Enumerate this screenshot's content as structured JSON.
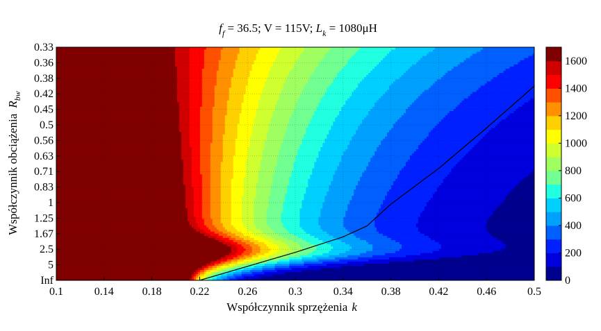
{
  "chart_data": {
    "type": "heatmap",
    "title": {
      "f_symbol": "f",
      "f_sub": "f",
      "f_rest": " = 36.5; V = 115V; ",
      "L_symbol": "L",
      "L_sub": "k",
      "L_rest": " = 1080μH"
    },
    "xlabel": {
      "text": "Współczynnik sprzężenia",
      "symbol": "k"
    },
    "ylabel": {
      "text": "Współczynnik obciążenia",
      "symbol": "R",
      "sub": "bw"
    },
    "x_ticks": [
      "0.1",
      "0.14",
      "0.18",
      "0.22",
      "0.26",
      "0.3",
      "0.34",
      "0.38",
      "0.42",
      "0.46",
      "0.5"
    ],
    "x_range": [
      0.1,
      0.5
    ],
    "y_ticks": [
      "0.33",
      "0.36",
      "0.38",
      "0.42",
      "0.45",
      "0.5",
      "0.56",
      "0.63",
      "0.71",
      "0.83",
      "1",
      "1.25",
      "1.67",
      "2.5",
      "5",
      "Inf"
    ],
    "colorbar": {
      "ticks": [
        "0",
        "200",
        "400",
        "600",
        "800",
        "1000",
        "1200",
        "1400",
        "1600"
      ],
      "range": [
        0,
        1700
      ]
    },
    "levels": [
      {
        "min": 0,
        "max": 100,
        "color": "#00008f"
      },
      {
        "min": 100,
        "max": 200,
        "color": "#0000df"
      },
      {
        "min": 200,
        "max": 300,
        "color": "#0020ff"
      },
      {
        "min": 300,
        "max": 400,
        "color": "#0060ff"
      },
      {
        "min": 400,
        "max": 500,
        "color": "#00a0ff"
      },
      {
        "min": 500,
        "max": 600,
        "color": "#00d0ff"
      },
      {
        "min": 600,
        "max": 700,
        "color": "#20ffdf"
      },
      {
        "min": 700,
        "max": 800,
        "color": "#70ff90"
      },
      {
        "min": 800,
        "max": 900,
        "color": "#a0ff60"
      },
      {
        "min": 900,
        "max": 1000,
        "color": "#d0ff30"
      },
      {
        "min": 1000,
        "max": 1100,
        "color": "#ffff00"
      },
      {
        "min": 1100,
        "max": 1200,
        "color": "#ffd000"
      },
      {
        "min": 1200,
        "max": 1300,
        "color": "#ff9000"
      },
      {
        "min": 1300,
        "max": 1400,
        "color": "#ff5000"
      },
      {
        "min": 1400,
        "max": 1500,
        "color": "#ff0000"
      },
      {
        "min": 1500,
        "max": 1600,
        "color": "#d00000"
      },
      {
        "min": 1600,
        "max": 1700,
        "color": "#800000"
      }
    ],
    "contour_line": {
      "color": "#000000",
      "points": [
        {
          "k": 0.1,
          "row": 15
        },
        {
          "k": 0.22,
          "row": 15
        },
        {
          "k": 0.26,
          "row": 14.1
        },
        {
          "k": 0.3,
          "row": 13.2
        },
        {
          "k": 0.34,
          "row": 12.2
        },
        {
          "k": 0.36,
          "row": 11.5
        },
        {
          "k": 0.38,
          "row": 10.1
        },
        {
          "k": 0.42,
          "row": 7.8
        },
        {
          "k": 0.46,
          "row": 5.2
        },
        {
          "k": 0.5,
          "row": 2.5
        }
      ]
    },
    "grid": true
  }
}
